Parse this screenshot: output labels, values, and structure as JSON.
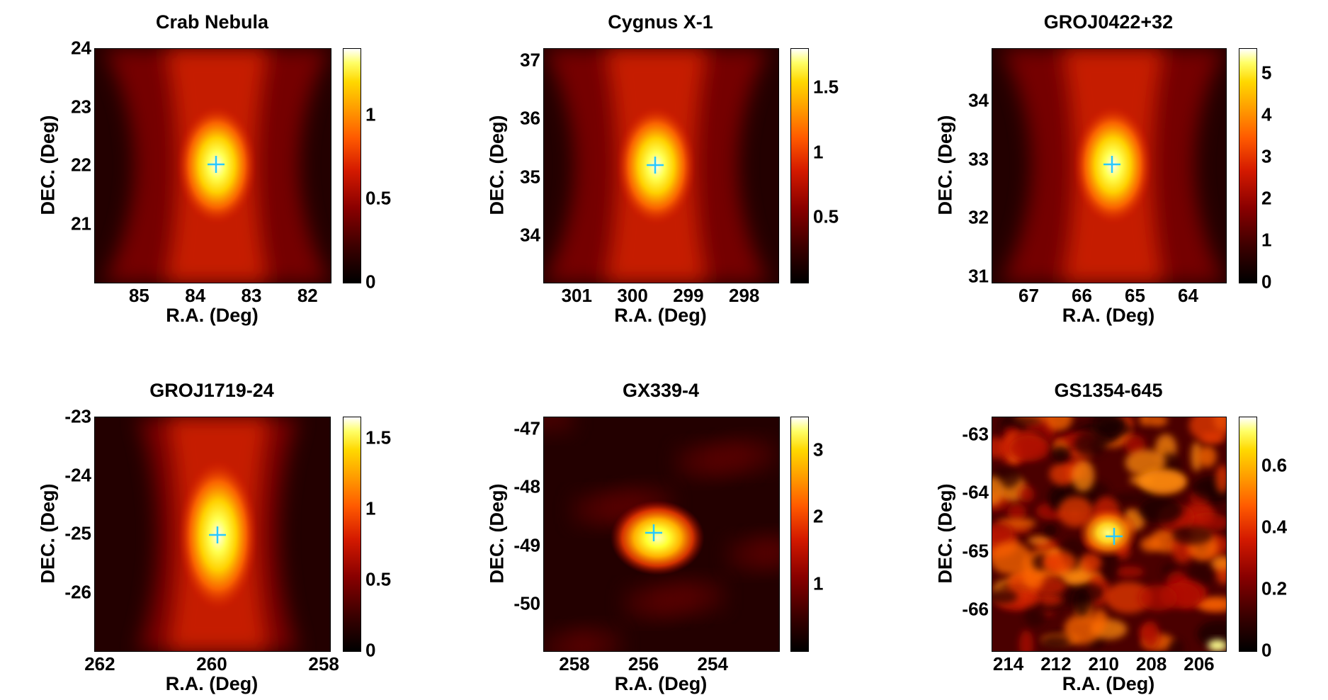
{
  "chart_data": [
    {
      "type": "heatmap",
      "title": "Crab Nebula",
      "xlabel": "R.A. (Deg)",
      "ylabel": "DEC. (Deg)",
      "xlim": [
        85.8,
        81.6
      ],
      "ylim": [
        20,
        24
      ],
      "xticks": [
        "85",
        "84",
        "83",
        "82"
      ],
      "xtick_values": [
        85,
        84,
        83,
        82
      ],
      "yticks": [
        "24",
        "23",
        "22",
        "21"
      ],
      "ytick_values": [
        24,
        23,
        22,
        21
      ],
      "colorbar_ticks": [
        "1",
        "0.5",
        "0"
      ],
      "colorbar_tick_values": [
        1,
        0.5,
        0
      ],
      "clim": [
        0,
        1.4
      ],
      "source_position": [
        83.63,
        22.01
      ],
      "style": "hourglass"
    },
    {
      "type": "heatmap",
      "title": "Cygnus X-1",
      "xlabel": "R.A. (Deg)",
      "ylabel": "DEC. (Deg)",
      "xlim": [
        301.6,
        297.4
      ],
      "ylim": [
        33.2,
        37.2
      ],
      "xticks": [
        "301",
        "300",
        "299",
        "298"
      ],
      "xtick_values": [
        301,
        300,
        299,
        298
      ],
      "yticks": [
        "37",
        "36",
        "35",
        "34"
      ],
      "ytick_values": [
        37,
        36,
        35,
        34
      ],
      "colorbar_ticks": [
        "1.5",
        "1",
        "0.5"
      ],
      "colorbar_tick_values": [
        1.5,
        1,
        0.5
      ],
      "clim": [
        0,
        1.8
      ],
      "source_position": [
        299.59,
        35.2
      ],
      "style": "hourglass"
    },
    {
      "type": "heatmap",
      "title": "GROJ0422+32",
      "xlabel": "R.A. (Deg)",
      "ylabel": "DEC. (Deg)",
      "xlim": [
        67.7,
        63.3
      ],
      "ylim": [
        30.9,
        34.9
      ],
      "xticks": [
        "67",
        "66",
        "65",
        "64"
      ],
      "xtick_values": [
        67,
        66,
        65,
        64
      ],
      "yticks": [
        "34",
        "33",
        "32",
        "31"
      ],
      "ytick_values": [
        34,
        33,
        32,
        31
      ],
      "colorbar_ticks": [
        "5",
        "4",
        "3",
        "2",
        "1",
        "0"
      ],
      "colorbar_tick_values": [
        5,
        4,
        3,
        2,
        1,
        0
      ],
      "clim": [
        0,
        5.6
      ],
      "source_position": [
        65.43,
        32.91
      ],
      "style": "hourglass"
    },
    {
      "type": "heatmap",
      "title": "GROJ1719-24",
      "xlabel": "R.A. (Deg)",
      "ylabel": "DEC. (Deg)",
      "xlim": [
        262.1,
        257.9
      ],
      "ylim": [
        -27,
        -23
      ],
      "xticks": [
        "262",
        "260",
        "258"
      ],
      "xtick_values": [
        262,
        260,
        258
      ],
      "yticks": [
        "-23",
        "-24",
        "-25",
        "-26"
      ],
      "ytick_values": [
        -23,
        -24,
        -25,
        -26
      ],
      "colorbar_ticks": [
        "1.5",
        "1",
        "0.5",
        "0"
      ],
      "colorbar_tick_values": [
        1.5,
        1,
        0.5,
        0
      ],
      "clim": [
        0,
        1.65
      ],
      "source_position": [
        259.9,
        -25.02
      ],
      "style": "column"
    },
    {
      "type": "heatmap",
      "title": "GX339-4",
      "xlabel": "R.A. (Deg)",
      "ylabel": "DEC. (Deg)",
      "xlim": [
        258.9,
        252.1
      ],
      "ylim": [
        -50.8,
        -46.8
      ],
      "xticks": [
        "258",
        "256",
        "254"
      ],
      "xtick_values": [
        258,
        256,
        254
      ],
      "yticks": [
        "-47",
        "-48",
        "-49",
        "-50"
      ],
      "ytick_values": [
        -47,
        -48,
        -49,
        -50
      ],
      "colorbar_ticks": [
        "3",
        "2",
        "1"
      ],
      "colorbar_tick_values": [
        3,
        2,
        1
      ],
      "clim": [
        0,
        3.5
      ],
      "source_position": [
        255.7,
        -48.79
      ],
      "style": "blob"
    },
    {
      "type": "heatmap",
      "title": "GS1354-645",
      "xlabel": "R.A. (Deg)",
      "ylabel": "DEC. (Deg)",
      "xlim": [
        214.7,
        204.9
      ],
      "ylim": [
        -66.7,
        -62.7
      ],
      "xticks": [
        "214",
        "212",
        "210",
        "208",
        "206"
      ],
      "xtick_values": [
        214,
        212,
        210,
        208,
        206
      ],
      "yticks": [
        "-63",
        "-64",
        "-65",
        "-66"
      ],
      "ytick_values": [
        -63,
        -64,
        -65,
        -66
      ],
      "colorbar_ticks": [
        "0.6",
        "0.4",
        "0.2",
        "0"
      ],
      "colorbar_tick_values": [
        0.6,
        0.4,
        0.2,
        0
      ],
      "clim": [
        0,
        0.76
      ],
      "source_position": [
        209.55,
        -64.75
      ],
      "style": "noise"
    }
  ],
  "colors": {
    "marker": "#29c8ff",
    "frame": "#000000"
  },
  "icons": {
    "source_marker": "cross-icon"
  }
}
